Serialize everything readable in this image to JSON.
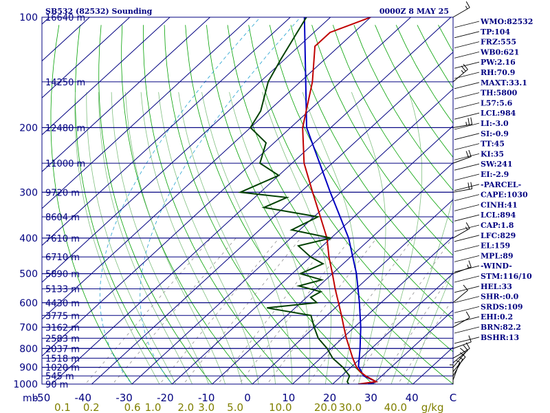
{
  "header": {
    "station": "SB532 (82532) Sounding",
    "time": "0000Z  8 MAY 25"
  },
  "colors": {
    "frame": "#000080",
    "isotherm": "#000080",
    "dry_adiabat": "#00a000",
    "moist_adiabat": "#7fbf7f",
    "mixing_ratio": "#909090",
    "isohume": "#20a0d0",
    "temperature": "#c00000",
    "dewpoint": "#004000",
    "parcel": "#0000c0",
    "text": "#000080",
    "mixing_label": "#808000"
  },
  "chart_data": {
    "type": "skew-t",
    "pressure_unit": "mb",
    "temperature_unit": "C",
    "mixing_ratio_unit": "g/kg",
    "pressure_range": [
      1000,
      100
    ],
    "temperature_range": [
      -50,
      50
    ],
    "pressure_ticks": [
      {
        "p": 100,
        "label": "100"
      },
      {
        "p": 200,
        "label": "200"
      },
      {
        "p": 300,
        "label": "300"
      },
      {
        "p": 400,
        "label": "400"
      },
      {
        "p": 500,
        "label": "500"
      },
      {
        "p": 600,
        "label": "600"
      },
      {
        "p": 700,
        "label": "700"
      },
      {
        "p": 800,
        "label": "800"
      },
      {
        "p": 900,
        "label": "900"
      },
      {
        "p": 1000,
        "label": "1000"
      }
    ],
    "pressure_axis_label": "mb",
    "height_levels": [
      {
        "p": 100,
        "label": "16640 m"
      },
      {
        "p": 150,
        "label": "14250 m"
      },
      {
        "p": 200,
        "label": "12480 m"
      },
      {
        "p": 250,
        "label": "11000 m"
      },
      {
        "p": 300,
        "label": "9720 m"
      },
      {
        "p": 350,
        "label": "8604 m"
      },
      {
        "p": 400,
        "label": "7610 m"
      },
      {
        "p": 450,
        "label": "6710 m"
      },
      {
        "p": 500,
        "label": "5890 m"
      },
      {
        "p": 550,
        "label": "5133 m"
      },
      {
        "p": 600,
        "label": "4430 m"
      },
      {
        "p": 650,
        "label": "3775 m"
      },
      {
        "p": 700,
        "label": "3162 m"
      },
      {
        "p": 750,
        "label": "2583 m"
      },
      {
        "p": 800,
        "label": "2037 m"
      },
      {
        "p": 850,
        "label": "1518 m"
      },
      {
        "p": 900,
        "label": "1020 m"
      },
      {
        "p": 950,
        "label": "545 m"
      },
      {
        "p": 1000,
        "label": "90 m"
      }
    ],
    "temperature_ticks": [
      {
        "t": -50,
        "label": "-50"
      },
      {
        "t": -40,
        "label": "-40"
      },
      {
        "t": -30,
        "label": "-30"
      },
      {
        "t": -20,
        "label": "-20"
      },
      {
        "t": -10,
        "label": "-10"
      },
      {
        "t": 0,
        "label": "0"
      },
      {
        "t": 10,
        "label": "10"
      },
      {
        "t": 20,
        "label": "20"
      },
      {
        "t": 30,
        "label": "30"
      },
      {
        "t": 40,
        "label": "40"
      },
      {
        "t": 50,
        "label": "C"
      }
    ],
    "mixing_ratio_ticks": [
      "0.1",
      "0.2",
      "0.6",
      "1.0",
      "2.0",
      "3.0",
      "5.0",
      "10.0",
      "20.0",
      "30.0",
      "40.0",
      "g/kg"
    ],
    "mixing_ratio_label_t": [
      -45,
      -38,
      -28,
      -23,
      -15,
      -10,
      -3,
      8,
      19,
      25,
      36,
      45
    ],
    "temperature_profile": [
      {
        "p": 1000,
        "t": 26.4
      },
      {
        "p": 985,
        "t": 30.2
      },
      {
        "p": 950,
        "t": 26.0
      },
      {
        "p": 925,
        "t": 23.5
      },
      {
        "p": 900,
        "t": 21.4
      },
      {
        "p": 850,
        "t": 18.0
      },
      {
        "p": 800,
        "t": 14.6
      },
      {
        "p": 750,
        "t": 11.0
      },
      {
        "p": 700,
        "t": 7.4
      },
      {
        "p": 650,
        "t": 3.6
      },
      {
        "p": 600,
        "t": -0.6
      },
      {
        "p": 550,
        "t": -5.2
      },
      {
        "p": 500,
        "t": -10.0
      },
      {
        "p": 450,
        "t": -15.4
      },
      {
        "p": 400,
        "t": -21.0
      },
      {
        "p": 350,
        "t": -28.4
      },
      {
        "p": 300,
        "t": -37.0
      },
      {
        "p": 250,
        "t": -47.0
      },
      {
        "p": 200,
        "t": -57.0
      },
      {
        "p": 150,
        "t": -67.0
      },
      {
        "p": 120,
        "t": -76.0
      },
      {
        "p": 110,
        "t": -76.0
      },
      {
        "p": 100,
        "t": -70.0
      }
    ],
    "dewpoint_profile": [
      {
        "p": 1000,
        "t": 24.0
      },
      {
        "p": 985,
        "t": 23.0
      },
      {
        "p": 950,
        "t": 22.0
      },
      {
        "p": 900,
        "t": 18.0
      },
      {
        "p": 850,
        "t": 13.0
      },
      {
        "p": 800,
        "t": 9.0
      },
      {
        "p": 750,
        "t": 4.0
      },
      {
        "p": 700,
        "t": 0.0
      },
      {
        "p": 650,
        "t": -4.0
      },
      {
        "p": 620,
        "t": -17.0
      },
      {
        "p": 600,
        "t": -6.0
      },
      {
        "p": 580,
        "t": -9.0
      },
      {
        "p": 560,
        "t": -8.0
      },
      {
        "p": 540,
        "t": -15.0
      },
      {
        "p": 520,
        "t": -11.0
      },
      {
        "p": 500,
        "t": -18.0
      },
      {
        "p": 470,
        "t": -15.0
      },
      {
        "p": 450,
        "t": -20.0
      },
      {
        "p": 420,
        "t": -26.0
      },
      {
        "p": 400,
        "t": -20.0
      },
      {
        "p": 380,
        "t": -32.0
      },
      {
        "p": 350,
        "t": -29.0
      },
      {
        "p": 330,
        "t": -45.0
      },
      {
        "p": 310,
        "t": -42.0
      },
      {
        "p": 300,
        "t": -55.0
      },
      {
        "p": 270,
        "t": -50.0
      },
      {
        "p": 250,
        "t": -58.0
      },
      {
        "p": 220,
        "t": -62.0
      },
      {
        "p": 200,
        "t": -70.0
      },
      {
        "p": 180,
        "t": -72.0
      },
      {
        "p": 150,
        "t": -78.0
      },
      {
        "p": 130,
        "t": -81.0
      },
      {
        "p": 100,
        "t": -86.0
      }
    ],
    "parcel_profile": [
      {
        "p": 1000,
        "t": 28.8
      },
      {
        "p": 985,
        "t": 30.2
      },
      {
        "p": 950,
        "t": 25.5
      },
      {
        "p": 894,
        "t": 21.6
      },
      {
        "p": 850,
        "t": 19.6
      },
      {
        "p": 800,
        "t": 17.2
      },
      {
        "p": 700,
        "t": 11.6
      },
      {
        "p": 600,
        "t": 4.6
      },
      {
        "p": 500,
        "t": -4.0
      },
      {
        "p": 400,
        "t": -15.6
      },
      {
        "p": 300,
        "t": -32.6
      },
      {
        "p": 200,
        "t": -56.0
      },
      {
        "p": 100,
        "t": -86.5
      }
    ],
    "wind_barbs": [
      {
        "p": 1000,
        "dir": 180,
        "spd": 5
      },
      {
        "p": 975,
        "dir": 200,
        "spd": 5
      },
      {
        "p": 950,
        "dir": 210,
        "spd": 5
      },
      {
        "p": 925,
        "dir": 220,
        "spd": 10
      },
      {
        "p": 900,
        "dir": 220,
        "spd": 10
      },
      {
        "p": 875,
        "dir": 230,
        "spd": 10
      },
      {
        "p": 850,
        "dir": 240,
        "spd": 10
      },
      {
        "p": 800,
        "dir": 250,
        "spd": 10
      },
      {
        "p": 700,
        "dir": 240,
        "spd": 10
      },
      {
        "p": 600,
        "dir": 230,
        "spd": 10
      },
      {
        "p": 500,
        "dir": 250,
        "spd": 15
      },
      {
        "p": 400,
        "dir": 240,
        "spd": 15
      },
      {
        "p": 300,
        "dir": 260,
        "spd": 20
      },
      {
        "p": 250,
        "dir": 250,
        "spd": 20
      },
      {
        "p": 200,
        "dir": 260,
        "spd": 25
      },
      {
        "p": 150,
        "dir": 230,
        "spd": 25
      },
      {
        "p": 100,
        "dir": 240,
        "spd": 15
      }
    ]
  },
  "indices": [
    "WMO:82532",
    "TP:104",
    "FRZ:555",
    "WB0:621",
    "PW:2.16",
    "RH:70.9",
    "MAXT:33.1",
    "TH:5800",
    "L57:5.6",
    "LCL:984",
    "LI:-3.0",
    "SI:-0.9",
    "TT:45",
    "KI:35",
    "SW:241",
    "EI:-2.9",
    "-PARCEL-",
    "CAPE:1030",
    "CINH:41",
    "LCL:894",
    "CAP:1.8",
    "LFC:829",
    "EL:159",
    "MPL:89",
    "-WIND-",
    "STM:116/10",
    "HEL:33",
    "SHR-:0.0",
    "SRDS:109",
    "EHI:0.2",
    "BRN:82.2",
    "BSHR:13"
  ]
}
